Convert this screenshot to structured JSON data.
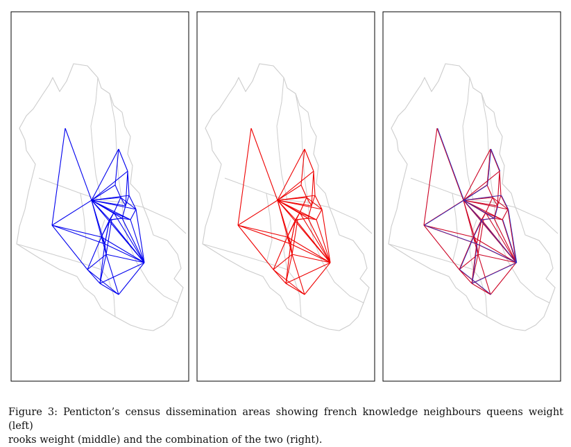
{
  "figure": {
    "panels": [
      {
        "id": "left",
        "line_color": "#0000ee",
        "weight": "queens"
      },
      {
        "id": "middle",
        "line_color": "#ee0000",
        "weight": "rooks"
      },
      {
        "id": "right",
        "line_color": "#cc0022",
        "weight": "combination"
      }
    ],
    "boundary_color": "#cccccc",
    "frame_color": "#000000"
  },
  "caption": {
    "line1": "Figure 3: Penticton’s census dissemination areas showing french knowledge neighbours queens weight (left)",
    "line2": "rooks weight (middle) and the combination of the two (right)."
  }
}
